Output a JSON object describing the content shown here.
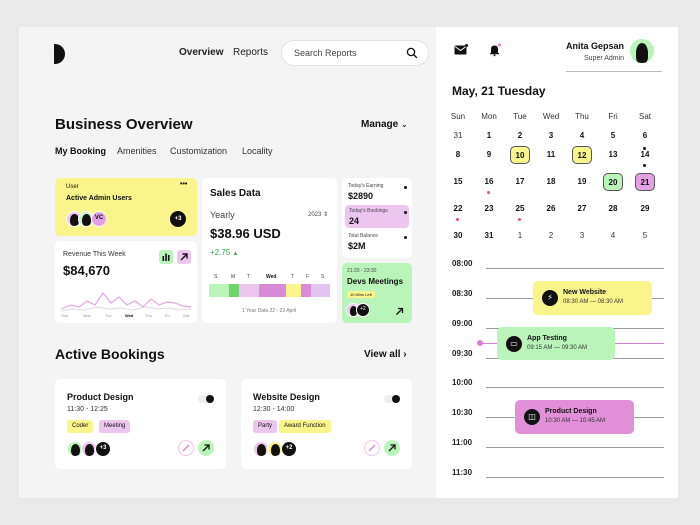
{
  "nav": {
    "overview": "Overview",
    "reports": "Reports",
    "search_placeholder": "Search Reports"
  },
  "overview": {
    "title": "Business Overview",
    "manage": "Manage",
    "tabs": [
      "My Booking",
      "Amenities",
      "Customization",
      "Locality"
    ]
  },
  "users_card": {
    "label": "User",
    "title": "Active Admin Users",
    "initials": "VC",
    "more": "+3",
    "menu": "•••"
  },
  "revenue": {
    "label": "Revenue This Week",
    "value": "$84,670",
    "days": [
      "Sun",
      "Mon",
      "Tue",
      "Wed",
      "Thu",
      "Fri",
      "Sat"
    ]
  },
  "sales": {
    "title": "Sales Data",
    "period": "Yearly",
    "year": "2023",
    "value": "$38.96 USD",
    "change": "+2.75",
    "days": [
      "S",
      "M",
      "T",
      "Wed",
      "T",
      "F",
      "S"
    ],
    "footer": "1 Year Data 22 - 23 April"
  },
  "stats": {
    "earning_label": "Today's Earning",
    "earning_value": "$2890",
    "bookings_label": "Today's Bookings",
    "bookings_value": "24",
    "balance_label": "Total Balance",
    "balance_value": "$2M"
  },
  "meeting": {
    "time": "21:20 - 23:30",
    "title": "Devs Meetings",
    "badge": "10 Mins Left",
    "count": "+2"
  },
  "active": {
    "title": "Active Bookings",
    "view_all": "View all"
  },
  "booking1": {
    "title": "Product Design",
    "time": "11:30 - 12:25",
    "tags": [
      "Coder",
      "Meeting"
    ],
    "more": "+3"
  },
  "booking2": {
    "title": "Website Design",
    "time": "12:30 - 14:00",
    "tags": [
      "Party",
      "Award Function"
    ],
    "more": "+2"
  },
  "user": {
    "name": "Anita Gepsan",
    "role": "Super Admin"
  },
  "calendar": {
    "date_title": "May, 21 Tuesday",
    "weekdays": [
      "Sun",
      "Mon",
      "Tue",
      "Wed",
      "Thu",
      "Fri",
      "Sat"
    ],
    "weeks": [
      [
        "31",
        "1",
        "2",
        "3",
        "4",
        "5",
        "6"
      ],
      [
        "8",
        "9",
        "10",
        "11",
        "12",
        "13",
        "14"
      ],
      [
        "15",
        "16",
        "17",
        "18",
        "19",
        "20",
        "21"
      ],
      [
        "22",
        "23",
        "25",
        "26",
        "27",
        "28",
        "29"
      ],
      [
        "30",
        "31",
        "1",
        "2",
        "3",
        "4",
        "5"
      ]
    ]
  },
  "schedule": {
    "times": [
      "08:00",
      "08:30",
      "09:00",
      "09:30",
      "10:00",
      "10:30",
      "11:00",
      "11:30"
    ],
    "events": [
      {
        "title": "New Website",
        "time": "08:30 AM — 08:30 AM"
      },
      {
        "title": "App Testing",
        "time": "09:15 AM — 09:30 AM"
      },
      {
        "title": "Product Design",
        "time": "10:30 AM — 10:45 AM"
      }
    ]
  },
  "colors": {
    "yellow": "#faf58a",
    "pink": "#edc6ef",
    "green": "#b9f5b8",
    "dark": "#111111",
    "accent_line": "#d97fd6"
  }
}
